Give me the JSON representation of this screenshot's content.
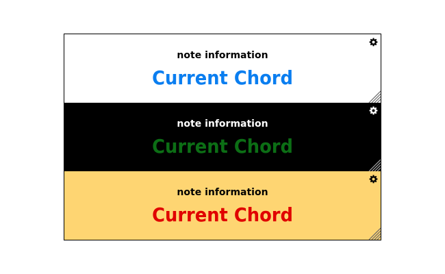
{
  "panels": [
    {
      "note_label": "note information",
      "chord_label": "Current Chord",
      "background": "#ffffff",
      "label_color": "#000000",
      "chord_color": "#0a7ef0",
      "icon_color": "#000000",
      "grip_color": "#666666"
    },
    {
      "note_label": "note information",
      "chord_label": "Current Chord",
      "background": "#000000",
      "label_color": "#ffffff",
      "chord_color": "#0c6e15",
      "icon_color": "#ffffff",
      "grip_color": "#aaaaaa"
    },
    {
      "note_label": "note information",
      "chord_label": "Current Chord",
      "background": "#fed572",
      "label_color": "#000000",
      "chord_color": "#e00000",
      "icon_color": "#000000",
      "grip_color": "#666666"
    }
  ],
  "icons": {
    "settings": "gear-icon",
    "resize": "resize-grip-icon"
  }
}
